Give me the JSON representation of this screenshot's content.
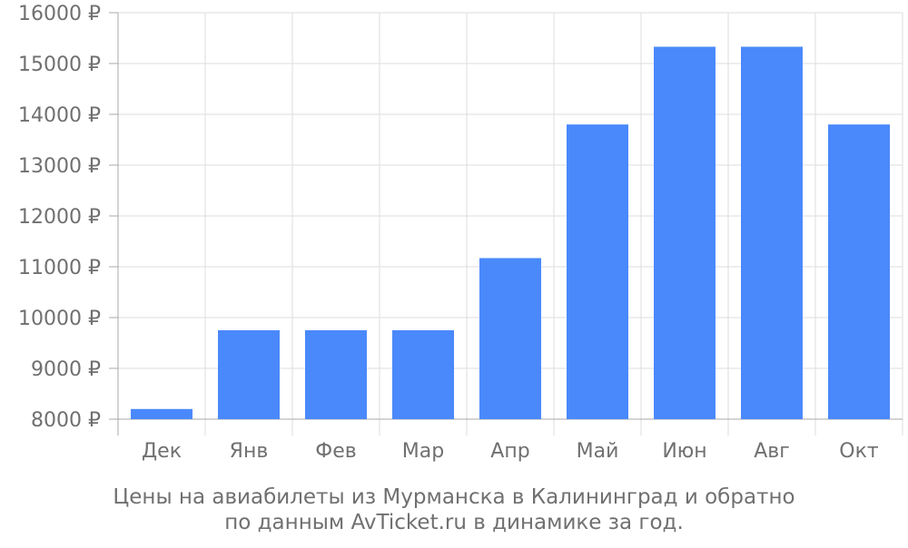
{
  "chart_data": {
    "type": "bar",
    "categories": [
      "Дек",
      "Янв",
      "Фев",
      "Мар",
      "Апр",
      "Май",
      "Июн",
      "Авг",
      "Окт"
    ],
    "values": [
      8200,
      9750,
      9750,
      9750,
      11170,
      13800,
      15330,
      15330,
      13800
    ],
    "ylim": [
      8000,
      16000
    ],
    "yticks": [
      8000,
      9000,
      10000,
      11000,
      12000,
      13000,
      14000,
      15000,
      16000
    ],
    "ytick_labels": [
      "8000 ₽",
      "9000 ₽",
      "10000 ₽",
      "11000 ₽",
      "12000 ₽",
      "13000 ₽",
      "14000 ₽",
      "15000 ₽",
      "16000 ₽"
    ],
    "grid": true,
    "colors": {
      "bar": "#4a89fb",
      "grid": "#dddddd",
      "axis": "#aaaaaa",
      "text": "#707070"
    }
  },
  "caption": {
    "line1": "Цены на авиабилеты из Мурманска в Калининград и обратно",
    "line2": "по данным AvTicket.ru в динамике за год."
  }
}
